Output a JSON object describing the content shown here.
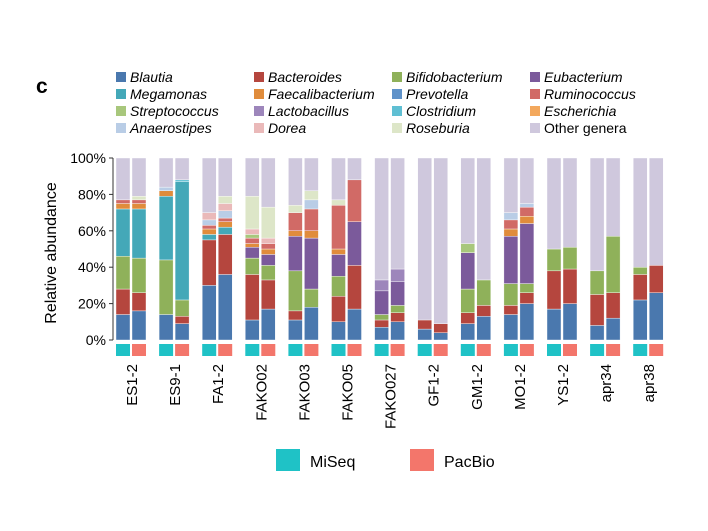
{
  "panel_label": "c",
  "platform_legend": [
    {
      "name": "MiSeq",
      "color": "#1fc2c6"
    },
    {
      "name": "PacBio",
      "color": "#f3766b"
    }
  ],
  "chart_data": {
    "type": "bar",
    "stacked": true,
    "ylabel": "Relative abundance",
    "ylim": [
      0,
      100
    ],
    "yticks": [
      "0%",
      "20%",
      "40%",
      "60%",
      "80%",
      "100%"
    ],
    "grid": false,
    "legend_position": "top",
    "genera": [
      {
        "name": "Blautia",
        "color": "#4a78ae",
        "italic": true
      },
      {
        "name": "Bacteroides",
        "color": "#b5463e",
        "italic": true
      },
      {
        "name": "Bifidobacterium",
        "color": "#8fb15a",
        "italic": true
      },
      {
        "name": "Eubacterium",
        "color": "#7b5a9b",
        "italic": true
      },
      {
        "name": "Megamonas",
        "color": "#44a8b8",
        "italic": true
      },
      {
        "name": "Faecalibacterium",
        "color": "#e08c3c",
        "italic": true
      },
      {
        "name": "Prevotella",
        "color": "#5f92c9",
        "italic": true
      },
      {
        "name": "Ruminococcus",
        "color": "#d16a66",
        "italic": true
      },
      {
        "name": "Streptococcus",
        "color": "#a8c77c",
        "italic": true
      },
      {
        "name": "Lactobacillus",
        "color": "#9d86bb",
        "italic": true
      },
      {
        "name": "Clostridium",
        "color": "#5fbfd3",
        "italic": true
      },
      {
        "name": "Escherichia",
        "color": "#f3a85d",
        "italic": true
      },
      {
        "name": "Anaerostipes",
        "color": "#b9cde6",
        "italic": true
      },
      {
        "name": "Dorea",
        "color": "#eab9b9",
        "italic": true
      },
      {
        "name": "Roseburia",
        "color": "#dde6c8",
        "italic": true
      },
      {
        "name": "Other genera",
        "color": "#cfc8dd",
        "italic": false
      }
    ],
    "samples": [
      {
        "label": "ES1-2",
        "MiSeq": [
          14,
          14,
          18,
          0,
          26,
          3,
          0,
          2,
          0,
          0,
          0,
          0,
          0,
          0,
          0,
          23
        ],
        "PacBio": [
          16,
          10,
          19,
          0,
          27,
          3,
          0,
          2,
          0,
          0,
          0,
          0,
          0,
          0,
          2,
          21
        ]
      },
      {
        "label": "ES9-1",
        "MiSeq": [
          14,
          0,
          30,
          0,
          35,
          3,
          0,
          0,
          0,
          0,
          0,
          0,
          2,
          0,
          0,
          16
        ],
        "PacBio": [
          9,
          4,
          9,
          0,
          65,
          0,
          0,
          0,
          0,
          0,
          1,
          0,
          0,
          0,
          0,
          12
        ]
      },
      {
        "label": "FA1-2",
        "MiSeq": [
          30,
          25,
          0,
          0,
          3,
          3,
          0,
          2,
          0,
          0,
          0,
          0,
          3,
          4,
          0,
          30
        ],
        "PacBio": [
          36,
          22,
          0,
          0,
          4,
          3,
          0,
          2,
          0,
          0,
          0,
          0,
          4,
          4,
          4,
          21
        ]
      },
      {
        "label": "FAKO02",
        "MiSeq": [
          11,
          25,
          9,
          6,
          0,
          2,
          0,
          3,
          2,
          0,
          0,
          0,
          0,
          3,
          18,
          21
        ],
        "PacBio": [
          17,
          16,
          8,
          6,
          0,
          3,
          0,
          3,
          0,
          0,
          0,
          0,
          0,
          3,
          17,
          27
        ]
      },
      {
        "label": "FAKO03",
        "MiSeq": [
          11,
          5,
          22,
          19,
          0,
          3,
          0,
          10,
          0,
          0,
          0,
          0,
          0,
          0,
          4,
          26
        ],
        "PacBio": [
          18,
          0,
          10,
          28,
          0,
          4,
          0,
          12,
          0,
          0,
          0,
          0,
          5,
          0,
          5,
          18
        ]
      },
      {
        "label": "FAKO05",
        "MiSeq": [
          10,
          14,
          11,
          12,
          0,
          3,
          0,
          24,
          0,
          0,
          0,
          0,
          0,
          0,
          3,
          23
        ],
        "PacBio": [
          17,
          24,
          0,
          24,
          0,
          0,
          0,
          23,
          0,
          0,
          0,
          0,
          0,
          0,
          0,
          12
        ]
      },
      {
        "label": "FAKO027",
        "MiSeq": [
          7,
          4,
          3,
          13,
          0,
          0,
          0,
          0,
          0,
          6,
          0,
          0,
          0,
          0,
          0,
          67
        ],
        "PacBio": [
          10,
          5,
          4,
          13,
          0,
          0,
          0,
          0,
          0,
          7,
          0,
          0,
          0,
          0,
          0,
          61
        ]
      },
      {
        "label": "GF1-2",
        "MiSeq": [
          6,
          5,
          0,
          0,
          0,
          0,
          0,
          0,
          0,
          0,
          0,
          0,
          0,
          0,
          0,
          89
        ],
        "PacBio": [
          4,
          5,
          0,
          0,
          0,
          0,
          0,
          0,
          0,
          0,
          0,
          0,
          0,
          0,
          0,
          91
        ]
      },
      {
        "label": "GM1-2",
        "MiSeq": [
          9,
          6,
          13,
          20,
          0,
          0,
          0,
          0,
          5,
          0,
          0,
          0,
          0,
          0,
          0,
          47
        ],
        "PacBio": [
          13,
          6,
          14,
          0,
          0,
          0,
          0,
          0,
          0,
          0,
          0,
          0,
          0,
          0,
          0,
          67
        ]
      },
      {
        "label": "MO1-2",
        "MiSeq": [
          14,
          5,
          12,
          26,
          0,
          4,
          0,
          5,
          0,
          0,
          0,
          0,
          4,
          0,
          0,
          30
        ],
        "PacBio": [
          20,
          6,
          5,
          33,
          0,
          4,
          0,
          5,
          0,
          0,
          0,
          0,
          2,
          0,
          0,
          25
        ]
      },
      {
        "label": "YS1-2",
        "MiSeq": [
          17,
          21,
          12,
          0,
          0,
          0,
          0,
          0,
          0,
          0,
          0,
          0,
          0,
          0,
          0,
          50
        ],
        "PacBio": [
          20,
          19,
          12,
          0,
          0,
          0,
          0,
          0,
          0,
          0,
          0,
          0,
          0,
          0,
          0,
          49
        ]
      },
      {
        "label": "apr34",
        "MiSeq": [
          8,
          17,
          13,
          0,
          0,
          0,
          0,
          0,
          0,
          0,
          0,
          0,
          0,
          0,
          0,
          62
        ],
        "PacBio": [
          12,
          14,
          31,
          0,
          0,
          0,
          0,
          0,
          0,
          0,
          0,
          0,
          0,
          0,
          0,
          43
        ]
      },
      {
        "label": "apr38",
        "MiSeq": [
          22,
          14,
          4,
          0,
          0,
          0,
          0,
          0,
          0,
          0,
          0,
          0,
          0,
          0,
          0,
          60
        ],
        "PacBio": [
          26,
          15,
          0,
          0,
          0,
          0,
          0,
          0,
          0,
          0,
          0,
          0,
          0,
          0,
          0,
          59
        ]
      }
    ]
  }
}
